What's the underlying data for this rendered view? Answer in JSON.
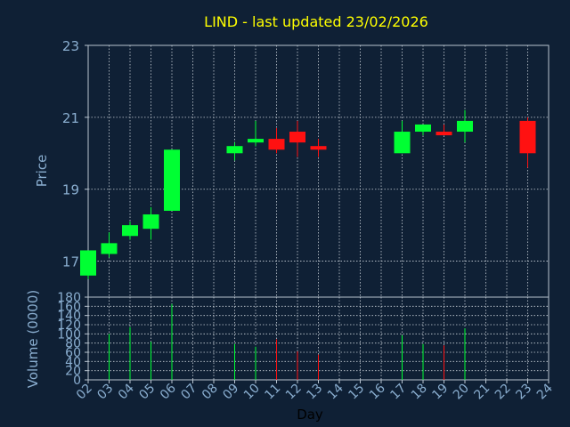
{
  "chart_data": [
    {
      "type": "candlestick",
      "title": "LIND - last updated 23/02/2026",
      "ylabel": "Price",
      "ylim": [
        16,
        23
      ],
      "yticks": [
        "17",
        "19",
        "21",
        "23"
      ],
      "grid": true,
      "candles": [
        {
          "day": "02",
          "open": 16.6,
          "high": 17.3,
          "low": 16.5,
          "close": 17.3
        },
        {
          "day": "03",
          "open": 17.2,
          "high": 17.8,
          "low": 17.1,
          "close": 17.5
        },
        {
          "day": "04",
          "open": 17.7,
          "high": 18.1,
          "low": 17.6,
          "close": 18.0
        },
        {
          "day": "05",
          "open": 17.9,
          "high": 18.5,
          "low": 17.6,
          "close": 18.3
        },
        {
          "day": "06",
          "open": 18.4,
          "high": 20.1,
          "low": 18.4,
          "close": 20.1
        },
        {
          "day": "09",
          "open": 20.0,
          "high": 20.3,
          "low": 19.8,
          "close": 20.2
        },
        {
          "day": "10",
          "open": 20.3,
          "high": 20.9,
          "low": 20.2,
          "close": 20.4
        },
        {
          "day": "11",
          "open": 20.4,
          "high": 20.7,
          "low": 20.0,
          "close": 20.1
        },
        {
          "day": "12",
          "open": 20.6,
          "high": 20.9,
          "low": 19.9,
          "close": 20.3
        },
        {
          "day": "13",
          "open": 20.2,
          "high": 20.4,
          "low": 19.9,
          "close": 20.1
        },
        {
          "day": "17",
          "open": 20.0,
          "high": 20.9,
          "low": 20.0,
          "close": 20.6
        },
        {
          "day": "18",
          "open": 20.6,
          "high": 20.8,
          "low": 20.5,
          "close": 20.8
        },
        {
          "day": "19",
          "open": 20.6,
          "high": 20.8,
          "low": 20.5,
          "close": 20.5
        },
        {
          "day": "20",
          "open": 20.6,
          "high": 21.2,
          "low": 20.3,
          "close": 20.9
        },
        {
          "day": "23",
          "open": 20.9,
          "high": 21.0,
          "low": 19.6,
          "close": 20.0
        }
      ]
    },
    {
      "type": "bar",
      "ylabel": "Volume (0000)",
      "xlabel": "Day",
      "ylim": [
        0,
        180
      ],
      "yticks": [
        "0",
        "20",
        "40",
        "60",
        "80",
        "100",
        "120",
        "140",
        "160",
        "180"
      ],
      "categories": [
        "02",
        "03",
        "04",
        "05",
        "06",
        "07",
        "08",
        "09",
        "10",
        "11",
        "12",
        "13",
        "14",
        "15",
        "16",
        "17",
        "18",
        "19",
        "20",
        "21",
        "22",
        "23",
        "24"
      ],
      "bars": [
        {
          "day": "03",
          "value": 100,
          "direction": "up"
        },
        {
          "day": "04",
          "value": 115,
          "direction": "up"
        },
        {
          "day": "05",
          "value": 83,
          "direction": "up"
        },
        {
          "day": "06",
          "value": 165,
          "direction": "up"
        },
        {
          "day": "09",
          "value": 78,
          "direction": "up"
        },
        {
          "day": "10",
          "value": 72,
          "direction": "up"
        },
        {
          "day": "11",
          "value": 88,
          "direction": "down"
        },
        {
          "day": "12",
          "value": 62,
          "direction": "down"
        },
        {
          "day": "13",
          "value": 55,
          "direction": "down"
        },
        {
          "day": "17",
          "value": 97,
          "direction": "up"
        },
        {
          "day": "18",
          "value": 78,
          "direction": "up"
        },
        {
          "day": "19",
          "value": 75,
          "direction": "down"
        },
        {
          "day": "20",
          "value": 112,
          "direction": "up"
        }
      ]
    }
  ],
  "colors": {
    "background": "#0f2035",
    "title": "#ffff00",
    "axis_text": "#8aaed0",
    "axis_line": "#b8c4d0",
    "grid": "#c8d0d8",
    "up": "#00ff33",
    "down": "#ff1111",
    "xlabel_text": "#000000"
  }
}
